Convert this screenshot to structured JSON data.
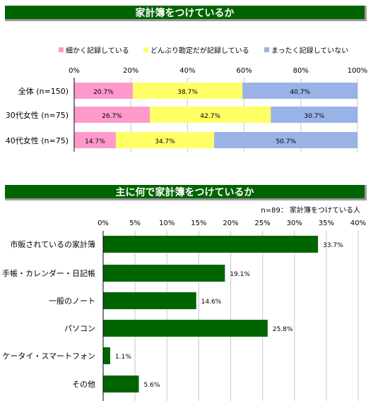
{
  "chart_data": [
    {
      "type": "bar",
      "orientation": "horizontal",
      "stacked": true,
      "percent": true,
      "title": "家計簿をつけているか",
      "categories": [
        "全体 (n=150)",
        "30代女性 (n=75)",
        "40代女性 (n=75)"
      ],
      "series": [
        {
          "name": "細かく記録している",
          "color": "#ff99cc",
          "values": [
            20.7,
            26.7,
            14.7
          ]
        },
        {
          "name": "どんぶり勘定だが記録している",
          "color": "#ffff66",
          "values": [
            38.7,
            42.7,
            34.7
          ]
        },
        {
          "name": "まったく記録していない",
          "color": "#99b3e6",
          "values": [
            40.7,
            30.7,
            50.7
          ]
        }
      ],
      "value_labels": [
        [
          "20.7%",
          "26.7%",
          "14.7%"
        ],
        [
          "38.7%",
          "42.7%",
          "34.7%"
        ],
        [
          "40.7%",
          "30.7%",
          "50.7%"
        ]
      ],
      "xlim": [
        0,
        100
      ],
      "xticks": [
        0,
        20,
        40,
        60,
        80,
        100
      ],
      "xtick_labels": [
        "0%",
        "20%",
        "40%",
        "60%",
        "80%",
        "100%"
      ],
      "grid": true,
      "legend_position": "top"
    },
    {
      "type": "bar",
      "orientation": "horizontal",
      "title": "主に何で家計簿をつけているか",
      "note": "n=89： 家計簿をつけている人",
      "categories": [
        "市販されているの家計簿",
        "手帳・カレンダー・日記帳",
        "一般のノート",
        "パソコン",
        "ケータイ・スマートフォン",
        "その他"
      ],
      "values": [
        33.7,
        19.1,
        14.6,
        25.8,
        1.1,
        5.6
      ],
      "value_labels": [
        "33.7%",
        "19.1%",
        "14.6%",
        "25.8%",
        "1.1%",
        "5.6%"
      ],
      "color": "#006400",
      "xlim": [
        0,
        40
      ],
      "xticks": [
        0,
        5,
        10,
        15,
        20,
        25,
        30,
        35,
        40
      ],
      "xtick_labels": [
        "0%",
        "5%",
        "10%",
        "15%",
        "20%",
        "25%",
        "30%",
        "35%",
        "40%"
      ],
      "grid": true
    }
  ]
}
